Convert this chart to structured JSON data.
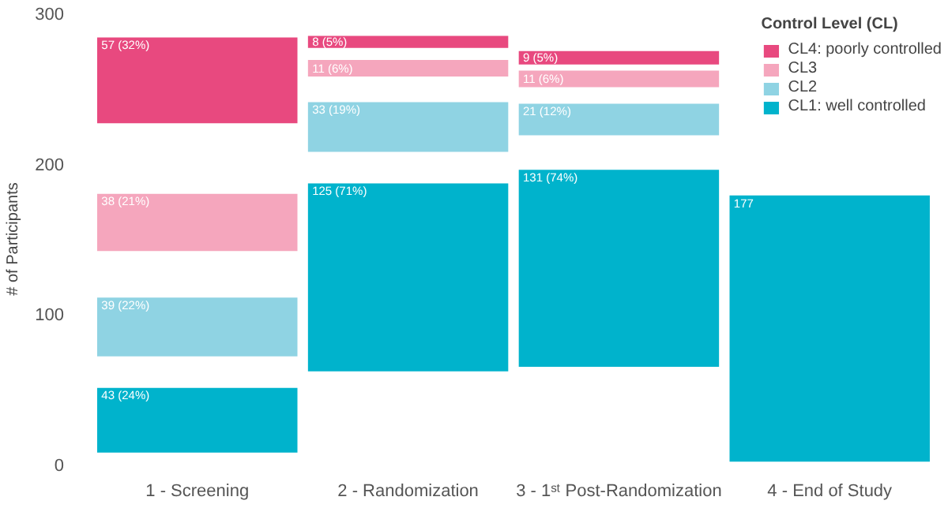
{
  "chart_data": {
    "type": "bar",
    "ylabel": "# of Participants",
    "legend_title": "Control Level (CL)",
    "categories": [
      "1 - Screening",
      "2 - Randomization",
      "3 - 1ˢᵗ Post-Randomization",
      "4 - End of Study"
    ],
    "series": [
      {
        "name": "CL4: poorly controlled",
        "color": "#e8497f",
        "values": [
          57,
          8,
          9,
          null
        ],
        "base": [
          227,
          277,
          266,
          null
        ],
        "value_labels": [
          "57 (32%)",
          "8 (5%)",
          "9 (5%)",
          null
        ]
      },
      {
        "name": "CL3",
        "color": "#f5a6bd",
        "values": [
          38,
          11,
          11,
          null
        ],
        "base": [
          142,
          258,
          251,
          null
        ],
        "value_labels": [
          "38 (21%)",
          "11 (6%)",
          "11 (6%)",
          null
        ]
      },
      {
        "name": "CL2",
        "color": "#8fd3e3",
        "values": [
          39,
          33,
          21,
          null
        ],
        "base": [
          72,
          208,
          219,
          null
        ],
        "value_labels": [
          "39 (22%)",
          "33 (19%)",
          "21 (12%)",
          null
        ]
      },
      {
        "name": "CL1: well controlled",
        "color": "#00b3cc",
        "values": [
          43,
          125,
          131,
          177
        ],
        "base": [
          8,
          62,
          65,
          2
        ],
        "value_labels": [
          "43 (24%)",
          "125 (71%)",
          "131 (74%)",
          "177"
        ]
      }
    ],
    "ylim": [
      0,
      300
    ],
    "yticks": [
      0,
      100,
      200,
      300
    ],
    "grid": false,
    "legend": "top right"
  }
}
